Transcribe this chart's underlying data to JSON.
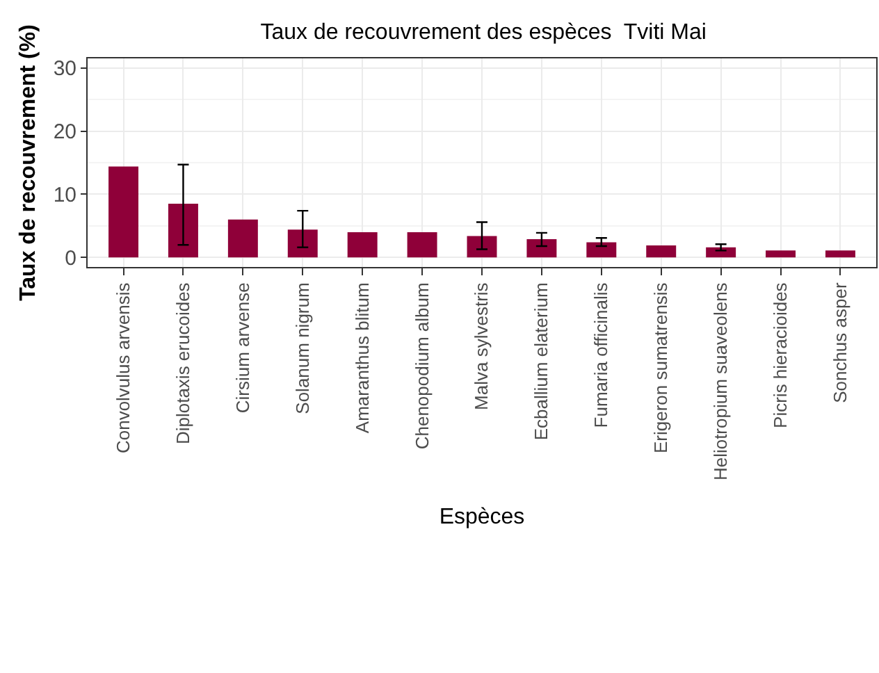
{
  "chart_data": {
    "type": "bar",
    "title": "Taux de recouvrement des espèces  Tviti Mai",
    "xlabel": "Espèces",
    "ylabel": "Taux de recouvrement (%)",
    "categories": [
      "Convolvulus arvensis",
      "Diplotaxis erucoides",
      "Cirsium arvense",
      "Solanum nigrum",
      "Amaranthus blitum",
      "Chenopodium album",
      "Malva sylvestris",
      "Ecballium elaterium",
      "Fumaria officinalis",
      "Erigeron sumatrensis",
      "Heliotropium suaveolens",
      "Picris hieracioides",
      "Sonchus asper"
    ],
    "series": [
      {
        "color": "#8f0039",
        "values": [
          14.4,
          8.5,
          6.0,
          4.4,
          4.0,
          4.0,
          3.4,
          2.9,
          2.4,
          1.9,
          1.6,
          1.1,
          1.1
        ],
        "errors": [
          null,
          [
            2.0,
            14.7
          ],
          null,
          [
            1.6,
            7.4
          ],
          null,
          null,
          [
            1.3,
            5.6
          ],
          [
            1.8,
            3.9
          ],
          [
            1.8,
            3.1
          ],
          null,
          [
            1.1,
            2.1
          ],
          null,
          null
        ]
      }
    ],
    "ylim": [
      -1.5,
      31.5
    ],
    "yticks": [
      0,
      10,
      20,
      30
    ],
    "grid": true
  }
}
